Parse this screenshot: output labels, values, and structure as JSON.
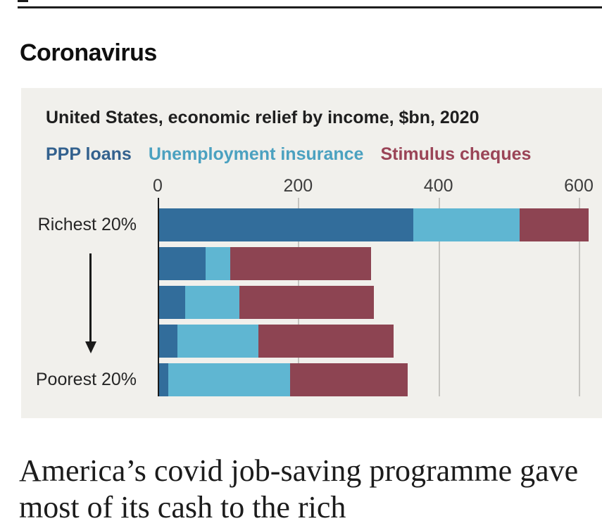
{
  "page": {
    "section_title": "Coronavirus",
    "headline": "America’s covid job-saving programme gave most of its cash to the rich"
  },
  "chart": {
    "title": "United States, economic relief by income, $bn, 2020",
    "panel_bg": "#f1f0ec",
    "legend": [
      {
        "label": "PPP loans",
        "color": "#33618e"
      },
      {
        "label": "Unemployment insurance",
        "color": "#4ba1c0"
      },
      {
        "label": "Stimulus cheques",
        "color": "#9a4457"
      }
    ],
    "row_label_top": "Richest 20%",
    "row_label_bottom": "Poorest 20%"
  },
  "chart_data": {
    "type": "bar",
    "orientation": "horizontal",
    "stacked": true,
    "title": "United States, economic relief by income, $bn, 2020",
    "unit": "$bn",
    "categories": [
      "Richest 20%",
      "",
      "",
      "",
      "Poorest 20%"
    ],
    "category_order_note": "arrow on chart points from Richest 20% down to Poorest 20%",
    "series": [
      {
        "name": "PPP loans",
        "color": "#326d9b",
        "values": [
          362,
          66,
          37,
          26,
          13
        ]
      },
      {
        "name": "Unemployment insurance",
        "color": "#5fb6d2",
        "values": [
          152,
          35,
          77,
          115,
          174
        ]
      },
      {
        "name": "Stimulus cheques",
        "color": "#8d4452",
        "values": [
          98,
          201,
          192,
          193,
          167
        ]
      }
    ],
    "row_totals": [
      612,
      302,
      306,
      334,
      354
    ],
    "xlim": [
      0,
      633
    ],
    "xticks": [
      0,
      200,
      400,
      600
    ],
    "gridlines": [
      200,
      400,
      600
    ],
    "axis_position": "top",
    "legend_position": "top"
  }
}
